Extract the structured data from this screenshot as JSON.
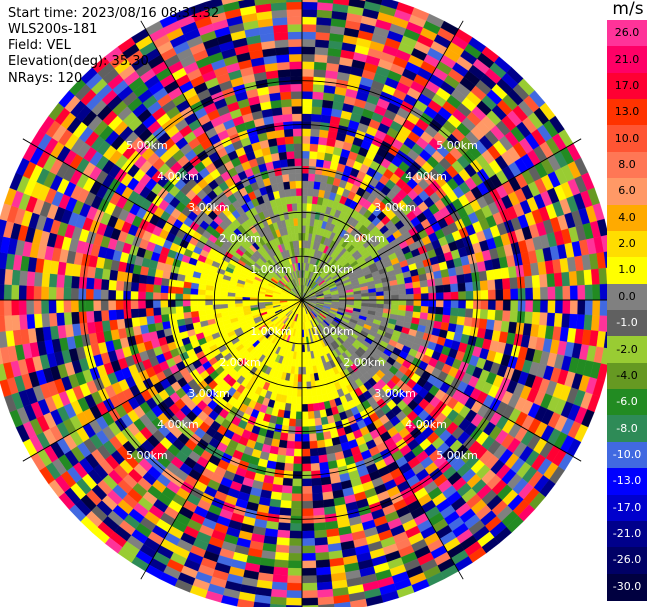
{
  "header": {
    "start_time": "Start time: 2023/08/16 08:31:32",
    "instrument": "WLS200s-181",
    "field": "Field: VEL",
    "elevation": "Elevation(deg): 35.30",
    "nrays": "NRays: 120"
  },
  "chart_data": {
    "type": "ppi-radar",
    "field": "VEL",
    "elevation_deg": 35.3,
    "n_rays": 120,
    "max_range_km": 7.0,
    "range_ring_km": [
      1.0,
      2.0,
      3.0,
      4.0,
      5.0
    ],
    "range_ring_labels": [
      "1.00km",
      "2.00km",
      "3.00km",
      "4.00km",
      "5.00km"
    ],
    "colorbar": {
      "unit": "m/s",
      "ticks": [
        "26.0",
        "21.0",
        "17.0",
        "13.0",
        "10.0",
        "8.0",
        "6.0",
        "4.0",
        "2.0",
        "1.0",
        "0.0",
        "-1.0",
        "-2.0",
        "-4.0",
        "-6.0",
        "-8.0",
        "-10.0",
        "-13.0",
        "-17.0",
        "-21.0",
        "-26.0",
        "-30.0"
      ],
      "colors": [
        "#ff3399",
        "#ff0066",
        "#ff0033",
        "#ff3300",
        "#ff5533",
        "#ff7755",
        "#ff9966",
        "#ffaa00",
        "#ffdd00",
        "#ffff00",
        "#808080",
        "#606060",
        "#99cc33",
        "#669922",
        "#228b22",
        "#2e8b57",
        "#4169e1",
        "#0000ff",
        "#0000cd",
        "#00008b",
        "#000066",
        "#000040"
      ]
    }
  }
}
